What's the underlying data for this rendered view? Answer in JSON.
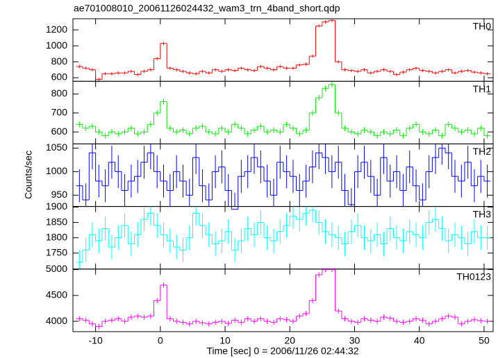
{
  "chart_data": {
    "type": "step",
    "title": "ae701008010_20061126024432_wam3_trn_4band_short.qdp",
    "xlabel": "Time [sec] 0 = 2006/11/26 02:44:32",
    "ylabel": "Counts/sec",
    "xlim": [
      -13.5,
      51.4
    ],
    "xticks": [
      -10,
      0,
      10,
      20,
      30,
      40,
      50
    ],
    "x": [
      -12.5,
      -11.5,
      -10.5,
      -9.5,
      -8.5,
      -7.5,
      -6.5,
      -5.5,
      -4.5,
      -3.5,
      -2.5,
      -1.5,
      -0.5,
      0.5,
      1.5,
      2.5,
      3.5,
      4.5,
      5.5,
      6.5,
      7.5,
      8.5,
      9.5,
      10.5,
      11.5,
      12.5,
      13.5,
      14.5,
      15.5,
      16.5,
      17.5,
      18.5,
      19.5,
      20.5,
      21.5,
      22.5,
      23.5,
      24.5,
      25.5,
      26.5,
      27.5,
      28.5,
      29.5,
      30.5,
      31.5,
      32.5,
      33.5,
      34.5,
      35.5,
      36.5,
      37.5,
      38.5,
      39.5,
      40.5,
      41.5,
      42.5,
      43.5,
      44.5,
      45.5,
      46.5,
      47.5,
      48.5,
      49.5,
      50.5
    ],
    "panels": [
      {
        "name": "TH0",
        "color": "#ff0000",
        "error": 20,
        "ylim": [
          555,
          1340
        ],
        "yticks": [
          600,
          800,
          1000,
          1200
        ],
        "values": [
          740,
          720,
          700,
          580,
          650,
          650,
          660,
          660,
          680,
          640,
          680,
          700,
          840,
          1030,
          720,
          700,
          680,
          660,
          650,
          680,
          660,
          700,
          680,
          700,
          690,
          720,
          700,
          690,
          740,
          720,
          700,
          740,
          720,
          720,
          760,
          770,
          870,
          1250,
          1300,
          1320,
          800,
          700,
          690,
          680,
          700,
          660,
          680,
          700,
          680,
          640,
          670,
          700,
          720,
          690,
          680,
          660,
          680,
          700,
          660,
          680,
          690,
          670,
          660,
          650
        ]
      },
      {
        "name": "TH1",
        "color": "#00ee00",
        "error": 15,
        "ylim": [
          537,
          867
        ],
        "yticks": [
          600,
          700,
          800
        ],
        "values": [
          640,
          620,
          630,
          600,
          580,
          600,
          590,
          600,
          620,
          590,
          600,
          640,
          700,
          760,
          620,
          600,
          610,
          590,
          620,
          630,
          600,
          590,
          620,
          600,
          640,
          620,
          590,
          610,
          630,
          600,
          610,
          600,
          640,
          620,
          590,
          610,
          700,
          780,
          830,
          850,
          700,
          620,
          600,
          590,
          610,
          600,
          580,
          600,
          590,
          610,
          580,
          620,
          640,
          600,
          590,
          610,
          580,
          640,
          620,
          600,
          610,
          590,
          620,
          580
        ]
      },
      {
        "name": "TH2",
        "color": "#0000ee",
        "error": 35,
        "ylim": [
          926,
          1059
        ],
        "yticks": [
          950,
          1000,
          1050
        ],
        "values": [
          970,
          940,
          1040,
          980,
          970,
          1020,
          1000,
          960,
          980,
          990,
          1020,
          1040,
          1000,
          980,
          960,
          1000,
          980,
          950,
          1030,
          970,
          940,
          1000,
          1010,
          960,
          920,
          990,
          1000,
          1030,
          1010,
          980,
          950,
          1020,
          1000,
          990,
          960,
          980,
          1010,
          1040,
          1030,
          1000,
          1020,
          960,
          930,
          1000,
          1020,
          990,
          950,
          1030,
          980,
          1000,
          960,
          1010,
          970,
          940,
          1000,
          1030,
          1050,
          1040,
          990,
          980,
          1020,
          970,
          990,
          980
        ]
      },
      {
        "name": "TH3",
        "color": "#00ffff",
        "error": 40,
        "ylim": [
          1698,
          1902
        ],
        "yticks": [
          1750,
          1800,
          1850,
          1900
        ],
        "values": [
          1720,
          1760,
          1810,
          1790,
          1830,
          1770,
          1800,
          1840,
          1780,
          1810,
          1860,
          1880,
          1840,
          1810,
          1790,
          1770,
          1760,
          1800,
          1880,
          1840,
          1810,
          1780,
          1790,
          1820,
          1760,
          1790,
          1830,
          1810,
          1850,
          1800,
          1790,
          1820,
          1840,
          1870,
          1860,
          1880,
          1890,
          1850,
          1820,
          1810,
          1800,
          1780,
          1820,
          1840,
          1800,
          1790,
          1810,
          1780,
          1830,
          1800,
          1790,
          1820,
          1810,
          1800,
          1850,
          1860,
          1830,
          1790,
          1810,
          1800,
          1780,
          1820,
          1800,
          1800
        ]
      },
      {
        "name": "TH0123",
        "color": "#ff00ff",
        "error": 50,
        "ylim": [
          3800,
          5010
        ],
        "yticks": [
          4000,
          4500,
          5000
        ],
        "values": [
          4050,
          4020,
          3950,
          3900,
          4000,
          4020,
          4050,
          4000,
          4080,
          4100,
          4080,
          4100,
          4400,
          4700,
          4050,
          4000,
          3980,
          3950,
          4000,
          3970,
          3950,
          3980,
          4000,
          3960,
          4020,
          3980,
          4050,
          4000,
          4050,
          4000,
          3980,
          4050,
          4030,
          4000,
          4100,
          4150,
          4400,
          4900,
          5000,
          5000,
          4200,
          4050,
          4000,
          3980,
          4050,
          4020,
          4000,
          4080,
          4060,
          4000,
          3980,
          4000,
          4050,
          4020,
          3950,
          4000,
          4050,
          4100,
          4080,
          3950,
          4000,
          4030,
          4010,
          4000
        ]
      }
    ]
  }
}
